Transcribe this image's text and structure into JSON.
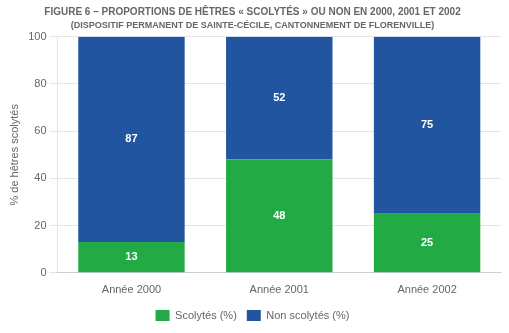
{
  "chart_data": {
    "type": "bar",
    "title": "FIGURE 6 – PROPORTIONS DE HÊTRES « SCOLYTÉS » OU NON EN 2000, 2001 ET 2002",
    "subtitle": "(DISPOSITIF PERMANENT DE SAINTE-CÉCILE, CANTONNEMENT DE FLORENVILLE)",
    "categories": [
      "Année 2000",
      "Année 2001",
      "Année 2002"
    ],
    "series": [
      {
        "name": "Scolytés (%)",
        "color": "#22aa44",
        "values": [
          13,
          48,
          25
        ]
      },
      {
        "name": "Non scolytés (%)",
        "color": "#2255a0",
        "values": [
          87,
          52,
          75
        ]
      }
    ],
    "ylabel": "% de hêtres scolytés",
    "ylim": [
      0,
      100
    ],
    "yticks": [
      0,
      20,
      40,
      60,
      80,
      100
    ],
    "stacked": true,
    "grid": true,
    "legend": "bottom",
    "data_labels": true
  }
}
